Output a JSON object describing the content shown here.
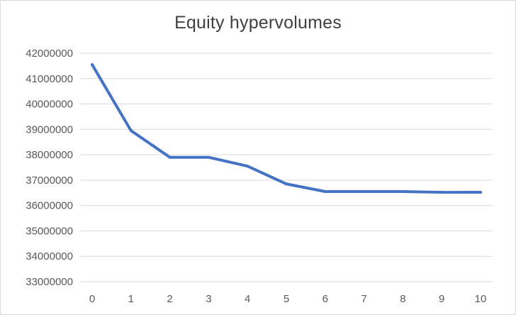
{
  "chart_data": {
    "type": "line",
    "title": "Equity hypervolumes",
    "xlabel": "",
    "ylabel": "",
    "x": [
      0,
      1,
      2,
      3,
      4,
      5,
      6,
      7,
      8,
      9,
      10
    ],
    "x_tick_labels": [
      "0",
      "1",
      "2",
      "3",
      "4",
      "5",
      "6",
      "7",
      "8",
      "9",
      "10"
    ],
    "y_tick_labels": [
      "33000000",
      "34000000",
      "35000000",
      "36000000",
      "37000000",
      "38000000",
      "39000000",
      "40000000",
      "41000000",
      "42000000"
    ],
    "ylim": [
      33000000,
      42000000
    ],
    "grid": "horizontal",
    "legend": "none",
    "series": [
      {
        "values": [
          41550000,
          38950000,
          37900000,
          37900000,
          37550000,
          36850000,
          36550000,
          36550000,
          36550000,
          36520000,
          36520000
        ],
        "color": "#4472c4"
      }
    ]
  }
}
